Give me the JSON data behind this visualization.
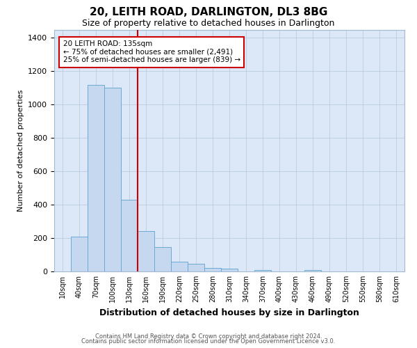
{
  "title": "20, LEITH ROAD, DARLINGTON, DL3 8BG",
  "subtitle": "Size of property relative to detached houses in Darlington",
  "xlabel": "Distribution of detached houses by size in Darlington",
  "ylabel": "Number of detached properties",
  "bar_labels": [
    "10sqm",
    "40sqm",
    "70sqm",
    "100sqm",
    "130sqm",
    "160sqm",
    "190sqm",
    "220sqm",
    "250sqm",
    "280sqm",
    "310sqm",
    "340sqm",
    "370sqm",
    "400sqm",
    "430sqm",
    "460sqm",
    "490sqm",
    "520sqm",
    "550sqm",
    "580sqm",
    "610sqm"
  ],
  "bar_values": [
    0,
    210,
    1120,
    1100,
    430,
    240,
    145,
    60,
    45,
    20,
    15,
    0,
    10,
    0,
    0,
    10,
    0,
    0,
    0,
    0,
    0
  ],
  "bar_color": "#c5d8f0",
  "bar_edge_color": "#6aaad4",
  "vline_color": "#cc0000",
  "ylim": [
    0,
    1450
  ],
  "yticks": [
    0,
    200,
    400,
    600,
    800,
    1000,
    1200,
    1400
  ],
  "annotation_title": "20 LEITH ROAD: 135sqm",
  "annotation_line1": "← 75% of detached houses are smaller (2,491)",
  "annotation_line2": "25% of semi-detached houses are larger (839) →",
  "annotation_box_color": "white",
  "annotation_box_edge_color": "#cc0000",
  "footer_line1": "Contains HM Land Registry data © Crown copyright and database right 2024.",
  "footer_line2": "Contains public sector information licensed under the Open Government Licence v3.0.",
  "background_color": "#dce8f8",
  "plot_background": "white",
  "grid_color": "#b8cde0"
}
